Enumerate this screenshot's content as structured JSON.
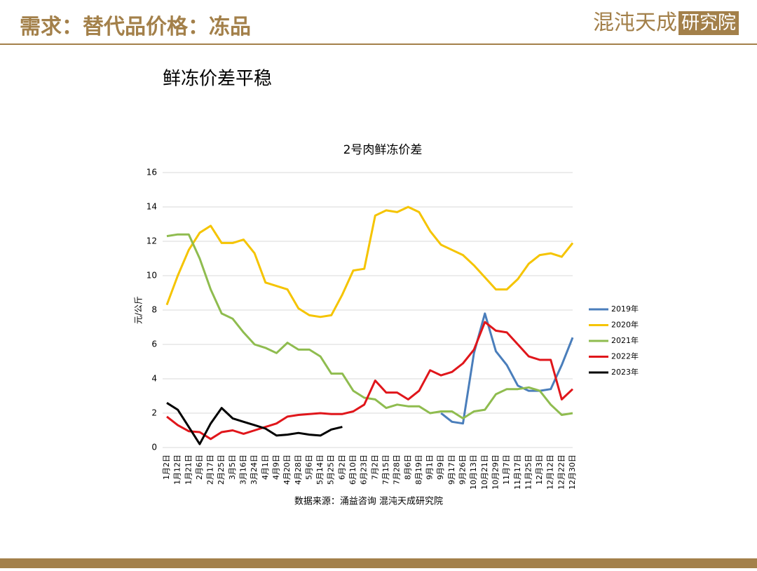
{
  "header": {
    "title": "需求：替代品价格：冻品",
    "logo": "混沌天成",
    "logo_box": "研究院"
  },
  "subtitle": "鲜冻价差平稳",
  "chart_data": {
    "type": "line",
    "title": "2号肉鲜冻价差",
    "y_label": "元/公斤",
    "source": "数据来源：涌益咨询 混沌天成研究院",
    "categories": [
      "1月2日",
      "1月12日",
      "1月21日",
      "2月6日",
      "2月17日",
      "2月25日",
      "3月5日",
      "3月16日",
      "3月24日",
      "4月1日",
      "4月9日",
      "4月20日",
      "4月28日",
      "5月6日",
      "5月14日",
      "5月25日",
      "6月2日",
      "6月10日",
      "6月23日",
      "7月2日",
      "7月15日",
      "7月28日",
      "8月6日",
      "8月19日",
      "9月1日",
      "9月9日",
      "9月17日",
      "9月26日",
      "10月13日",
      "10月21日",
      "10月29日",
      "11月7日",
      "11月17日",
      "11月25日",
      "12月3日",
      "12月12日",
      "12月22日",
      "12月30日"
    ],
    "ylim": [
      0,
      16
    ],
    "yticks": [
      0,
      2,
      4,
      6,
      8,
      10,
      12,
      14,
      16
    ],
    "grid": true,
    "legend": "right",
    "series": [
      {
        "name": "2019年",
        "color": "#4a7ebb",
        "values": [
          null,
          null,
          null,
          null,
          null,
          null,
          null,
          null,
          null,
          null,
          null,
          null,
          null,
          null,
          null,
          null,
          null,
          null,
          null,
          null,
          null,
          null,
          null,
          null,
          null,
          2.0,
          1.5,
          1.4,
          5.5,
          7.8,
          5.6,
          4.8,
          3.6,
          3.3,
          3.3,
          3.4,
          4.8,
          6.4
        ]
      },
      {
        "name": "2020年",
        "color": "#f5c400",
        "values": [
          8.3,
          10.0,
          11.5,
          12.5,
          12.9,
          11.9,
          11.9,
          12.1,
          11.3,
          9.6,
          9.4,
          9.2,
          8.1,
          7.7,
          7.6,
          7.7,
          8.9,
          10.3,
          10.4,
          13.5,
          13.8,
          13.7,
          14.0,
          13.7,
          12.6,
          11.8,
          11.5,
          11.2,
          10.6,
          9.9,
          9.2,
          9.2,
          9.8,
          10.7,
          11.2,
          11.3,
          11.1,
          11.9
        ]
      },
      {
        "name": "2021年",
        "color": "#8fbc4f",
        "values": [
          12.3,
          12.4,
          12.4,
          11.0,
          9.2,
          7.8,
          7.5,
          6.7,
          6.0,
          5.8,
          5.5,
          6.1,
          5.7,
          5.7,
          5.3,
          4.3,
          4.3,
          3.3,
          2.9,
          2.8,
          2.3,
          2.5,
          2.4,
          2.4,
          2.0,
          2.1,
          2.1,
          1.7,
          2.1,
          2.2,
          3.1,
          3.4,
          3.4,
          3.5,
          3.3,
          2.5,
          1.9,
          2.0
        ]
      },
      {
        "name": "2022年",
        "color": "#e0161b",
        "values": [
          1.8,
          1.3,
          0.95,
          0.9,
          0.5,
          0.9,
          1.0,
          0.8,
          1.0,
          1.2,
          1.4,
          1.8,
          1.9,
          1.95,
          2.0,
          1.95,
          1.95,
          2.1,
          2.5,
          3.9,
          3.2,
          3.2,
          2.8,
          3.3,
          4.5,
          4.2,
          4.4,
          4.9,
          5.7,
          7.3,
          6.8,
          6.7,
          6.0,
          5.3,
          5.1,
          5.1,
          2.8,
          3.4
        ]
      },
      {
        "name": "2023年",
        "color": "#000000",
        "values": [
          2.6,
          2.2,
          1.2,
          0.2,
          1.4,
          2.3,
          1.7,
          1.5,
          1.3,
          1.1,
          0.7,
          0.75,
          0.85,
          0.75,
          0.7,
          1.05,
          1.2,
          null,
          null,
          null,
          null,
          null,
          null,
          null,
          null,
          null,
          null,
          null,
          null,
          null,
          null,
          null,
          null,
          null,
          null,
          null,
          null,
          null
        ]
      }
    ]
  }
}
